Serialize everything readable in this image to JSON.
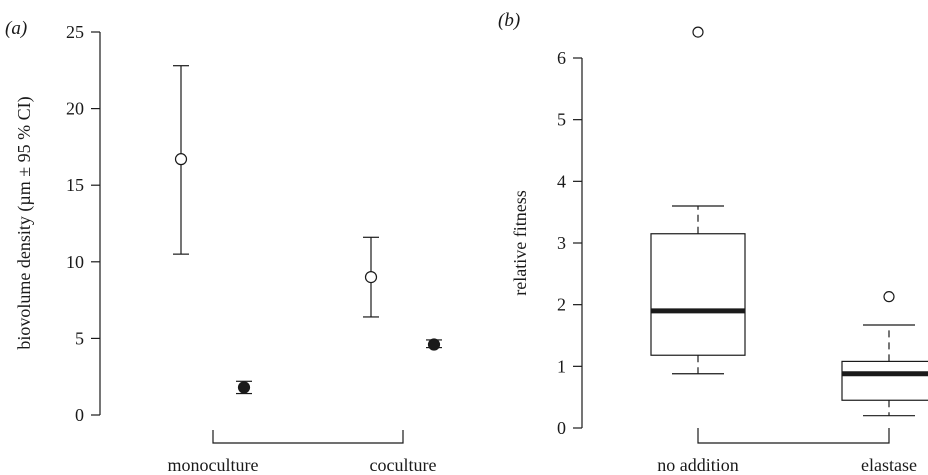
{
  "chart_data": [
    {
      "type": "scatter",
      "panel_label": "(a)",
      "ylabel": "biovolume density (µm ± 95 % CI)",
      "ylim": [
        0,
        25
      ],
      "yticks": [
        0,
        5,
        10,
        15,
        20,
        25
      ],
      "categories": [
        "monoculture",
        "coculture"
      ],
      "series": [
        {
          "marker": "open-circle",
          "color": "#ffffff",
          "points": [
            {
              "category": "monoculture",
              "y": 16.7,
              "lower": 10.5,
              "upper": 22.8
            },
            {
              "category": "coculture",
              "y": 9.0,
              "lower": 6.4,
              "upper": 11.6
            }
          ]
        },
        {
          "marker": "filled-circle",
          "color": "#1a1a1a",
          "points": [
            {
              "category": "monoculture",
              "y": 1.8,
              "lower": 1.4,
              "upper": 2.2
            },
            {
              "category": "coculture",
              "y": 4.6,
              "lower": 4.4,
              "upper": 4.9
            }
          ]
        }
      ]
    },
    {
      "type": "box",
      "panel_label": "(b)",
      "ylabel": "relative fitness",
      "ylim": [
        0,
        6.5
      ],
      "yticks": [
        0,
        1,
        2,
        3,
        4,
        5,
        6
      ],
      "categories": [
        "no addition",
        "elastase"
      ],
      "boxes": [
        {
          "category": "no addition",
          "whisker_low": 0.88,
          "q1": 1.18,
          "median": 1.9,
          "q3": 3.15,
          "whisker_high": 3.6,
          "outliers": [
            6.42
          ]
        },
        {
          "category": "elastase",
          "whisker_low": 0.2,
          "q1": 0.45,
          "median": 0.88,
          "q3": 1.08,
          "whisker_high": 1.67,
          "outliers": [
            2.13
          ]
        }
      ]
    }
  ]
}
